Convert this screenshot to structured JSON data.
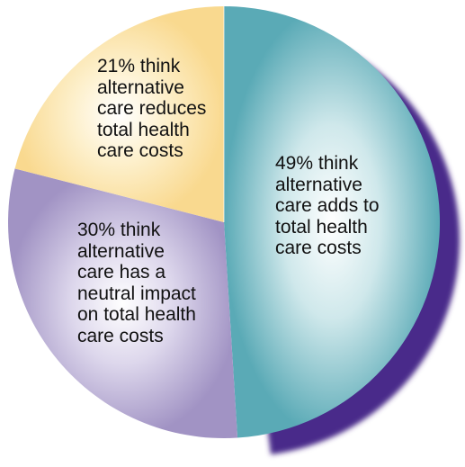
{
  "chart_data": {
    "type": "pie",
    "categories": [
      "think alternative care adds to total health care costs",
      "think alternative care has a neutral impact on total health care costs",
      "think alternative care reduces total health care costs"
    ],
    "values": [
      49,
      30,
      21
    ],
    "unit": "%",
    "labels": [
      "49% think\nalternative\ncare adds to\ntotal health\ncare costs",
      "30% think\nalternative\ncare has a\nneutral impact\non total health\ncare costs",
      "21% think\nalternative\ncare reduces\ntotal health\ncare costs"
    ],
    "colors": [
      "#5fb0bc",
      "#a79ac8",
      "#fadd98"
    ],
    "shadow_color": "#4a2a8a",
    "start": "12 o'clock",
    "direction": "clockwise"
  }
}
